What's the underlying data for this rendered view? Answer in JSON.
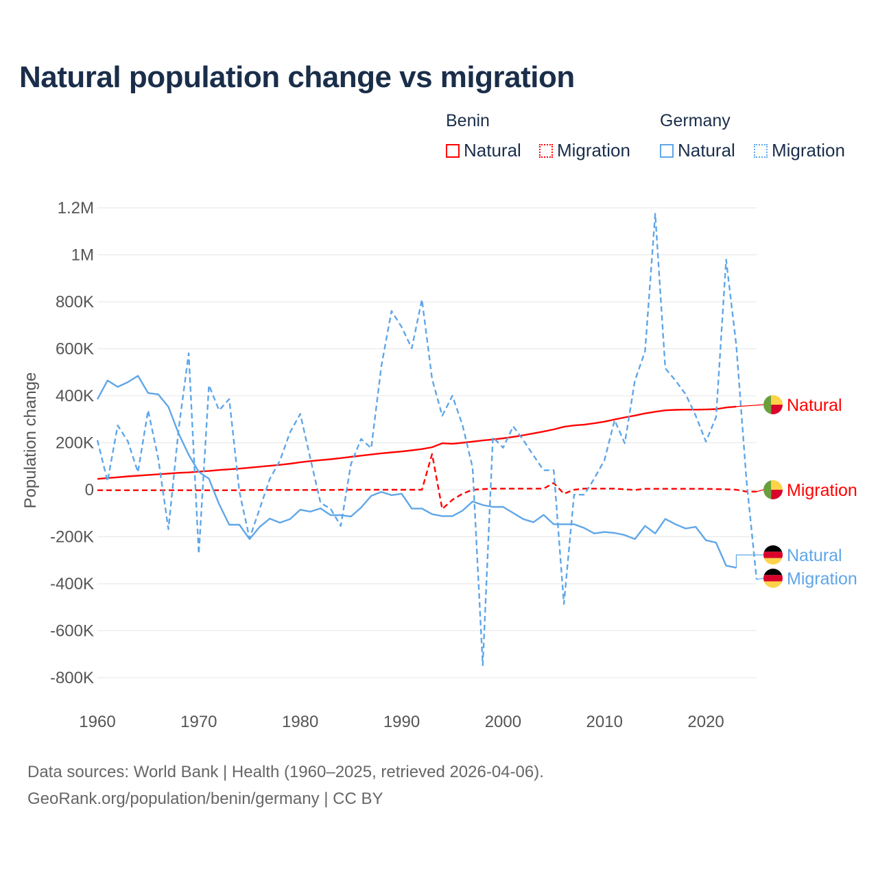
{
  "title": "Natural population change vs migration",
  "legend": {
    "groups": [
      {
        "name": "Benin",
        "items": [
          {
            "label": "Natural",
            "style": "solid"
          },
          {
            "label": "Migration",
            "style": "dotted"
          }
        ],
        "color": "#ff0000"
      },
      {
        "name": "Germany",
        "items": [
          {
            "label": "Natural",
            "style": "solid"
          },
          {
            "label": "Migration",
            "style": "dotted"
          }
        ],
        "color": "#5fa6e8"
      }
    ]
  },
  "footer": {
    "line1": "Data sources: World Bank | Health (1960–2025, retrieved 2026-04-06).",
    "line2": "GeoRank.org/population/benin/germany | CC BY"
  },
  "chart_data": {
    "type": "line",
    "title": "Natural population change vs migration",
    "xlabel": "",
    "ylabel": "Population change",
    "xlim": [
      1960,
      2025
    ],
    "ylim": [
      -800000,
      1200000
    ],
    "grid": true,
    "legend_placement": "top-right",
    "x_ticks": [
      {
        "v": 1960,
        "label": "1960"
      },
      {
        "v": 1970,
        "label": "1970"
      },
      {
        "v": 1980,
        "label": "1980"
      },
      {
        "v": 1990,
        "label": "1990"
      },
      {
        "v": 2000,
        "label": "2000"
      },
      {
        "v": 2010,
        "label": "2010"
      },
      {
        "v": 2020,
        "label": "2020"
      }
    ],
    "y_ticks": [
      {
        "v": 1200000,
        "label": "1.2M"
      },
      {
        "v": 1000000,
        "label": "1M"
      },
      {
        "v": 800000,
        "label": "800K"
      },
      {
        "v": 600000,
        "label": "600K"
      },
      {
        "v": 400000,
        "label": "400K"
      },
      {
        "v": 200000,
        "label": "200K"
      },
      {
        "v": 0,
        "label": "0"
      },
      {
        "v": -200000,
        "label": "-200K"
      },
      {
        "v": -400000,
        "label": "-400K"
      },
      {
        "v": -600000,
        "label": "-600K"
      },
      {
        "v": -800000,
        "label": "-800K"
      }
    ],
    "series": [
      {
        "name": "Benin Natural",
        "end_label": "Natural",
        "country": "Benin",
        "color": "#ff0000",
        "dash": false,
        "start": 1960,
        "values": [
          46,
          50,
          53,
          57,
          60,
          63,
          66,
          69,
          72,
          74,
          77,
          80,
          84,
          87,
          90,
          94,
          98,
          102,
          106,
          111,
          117,
          122,
          126,
          130,
          135,
          140,
          145,
          150,
          155,
          159,
          163,
          168,
          173,
          181,
          198,
          196,
          200,
          205,
          210,
          214,
          219,
          225,
          232,
          240,
          248,
          257,
          268,
          274,
          277,
          283,
          290,
          299,
          308,
          316,
          325,
          332,
          338,
          340,
          341,
          341,
          342,
          343,
          350,
          354
        ]
      },
      {
        "name": "Benin Migration",
        "end_label": "Migration",
        "country": "Benin",
        "color": "#ff0000",
        "dash": true,
        "start": 1960,
        "values": [
          -2,
          -2,
          -2,
          -2,
          -2,
          -2,
          -2,
          -2,
          -2,
          -2,
          -2,
          -2,
          -2,
          -2,
          -2,
          -1,
          -1,
          -1,
          -1,
          -1,
          -1,
          -1,
          -1,
          -1,
          0,
          0,
          0,
          0,
          0,
          0,
          0,
          0,
          0,
          152,
          -82,
          -43,
          -17,
          0,
          3,
          5,
          5,
          5,
          5,
          5,
          5,
          29,
          -17,
          0,
          5,
          5,
          5,
          5,
          2,
          -1,
          4,
          4,
          4,
          4,
          4,
          4,
          4,
          3,
          2,
          0,
          -8,
          -8
        ]
      },
      {
        "name": "Germany Natural",
        "end_label": "Natural",
        "country": "Germany",
        "color": "#5fa6e8",
        "dash": false,
        "start": 1960,
        "values": [
          385,
          465,
          438,
          458,
          485,
          412,
          406,
          353,
          240,
          149,
          76,
          47,
          -61,
          -149,
          -149,
          -210,
          -158,
          -123,
          -140,
          -125,
          -85,
          -93,
          -79,
          -108,
          -108,
          -114,
          -76,
          -26,
          -9,
          -23,
          -17,
          -80,
          -80,
          -104,
          -112,
          -112,
          -89,
          -50,
          -65,
          -73,
          -73,
          -99,
          -125,
          -138,
          -107,
          -147,
          -147,
          -147,
          -163,
          -186,
          -180,
          -184,
          -193,
          -210,
          -154,
          -186,
          -124,
          -147,
          -165,
          -158,
          -215,
          -225,
          -323,
          -332
        ]
      },
      {
        "name": "Germany Migration",
        "end_label": "Migration",
        "country": "Germany",
        "color": "#5fa6e8",
        "dash": true,
        "start": 1960,
        "values": [
          211,
          36,
          274,
          206,
          75,
          338,
          133,
          -168,
          255,
          581,
          -273,
          445,
          338,
          386,
          -8,
          -207,
          -81,
          46,
          124,
          245,
          323,
          133,
          -56,
          -81,
          -154,
          109,
          216,
          177,
          527,
          761,
          693,
          602,
          810,
          472,
          315,
          400,
          276,
          94,
          -747,
          224,
          179,
          270,
          211,
          146,
          83,
          83,
          -486,
          -21,
          -21,
          48,
          126,
          296,
          198,
          465,
          589,
          1175,
          517,
          465,
          407,
          315,
          205,
          309,
          980,
          615,
          42,
          -382
        ]
      }
    ],
    "value_unit": "thousands"
  }
}
